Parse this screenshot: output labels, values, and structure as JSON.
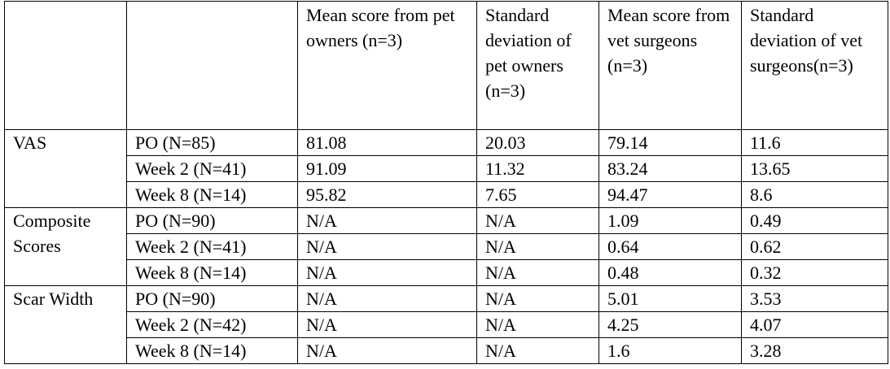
{
  "table": {
    "header": [
      "Mean score from pet owners (n=3)",
      "Standard deviation of pet owners (n=3)",
      "Mean score from vet surgeons (n=3)",
      "Standard deviation of vet surgeons(n=3)"
    ],
    "groups": [
      {
        "label": "VAS",
        "rows": [
          [
            "PO (N=85)",
            "81.08",
            "20.03",
            "79.14",
            "11.6"
          ],
          [
            "Week 2 (N=41)",
            "91.09",
            "11.32",
            "83.24",
            "13.65"
          ],
          [
            "Week 8 (N=14)",
            "95.82",
            "7.65",
            "94.47",
            "8.6"
          ]
        ]
      },
      {
        "label": "Composite Scores",
        "rows": [
          [
            "PO (N=90)",
            "N/A",
            "N/A",
            "1.09",
            "0.49"
          ],
          [
            "Week 2 (N=41)",
            "N/A",
            "N/A",
            "0.64",
            "0.62"
          ],
          [
            "Week 8 (N=14)",
            "N/A",
            "N/A",
            "0.48",
            "0.32"
          ]
        ]
      },
      {
        "label": "Scar Width",
        "rows": [
          [
            "PO (N=90)",
            "N/A",
            "N/A",
            "5.01",
            "3.53"
          ],
          [
            "Week 2 (N=42)",
            "N/A",
            "N/A",
            "4.25",
            "4.07"
          ],
          [
            "Week 8 (N=14)",
            "N/A",
            "N/A",
            "1.6",
            "3.28"
          ]
        ]
      }
    ]
  }
}
